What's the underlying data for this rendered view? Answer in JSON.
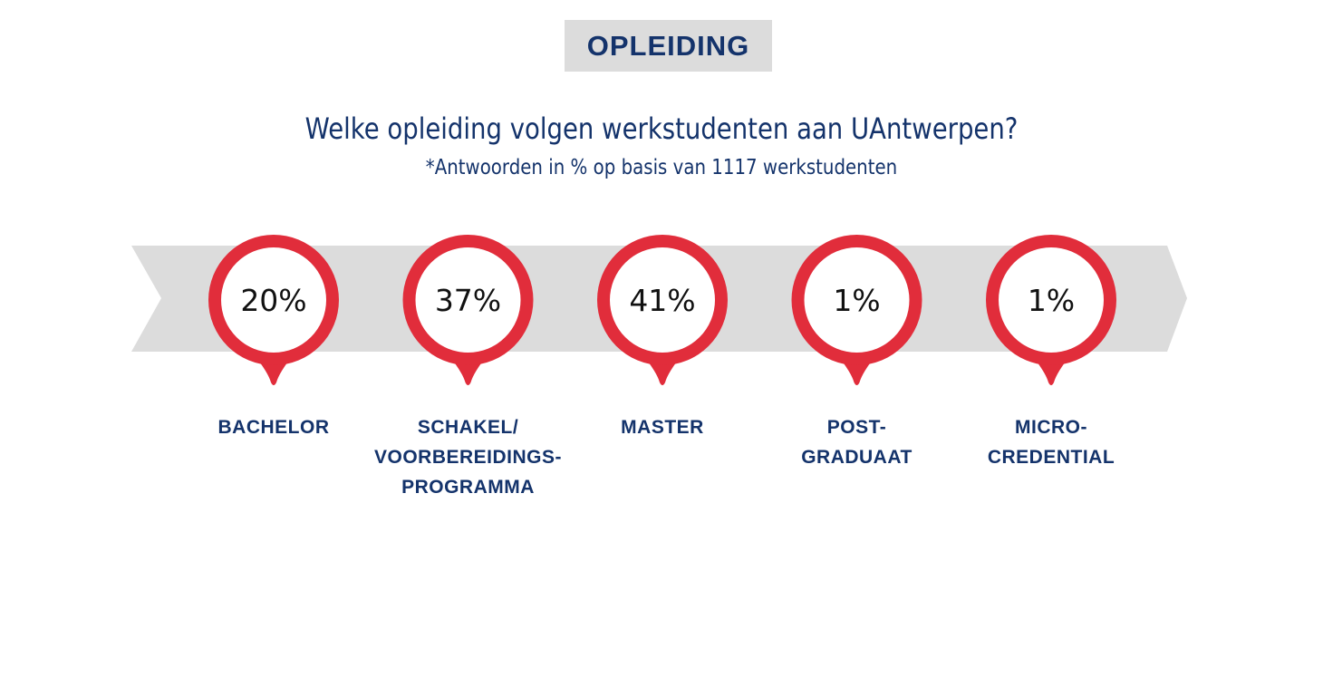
{
  "header": {
    "section_title": "OPLEIDING"
  },
  "chart_data": {
    "type": "bar",
    "title": "Welke opleiding volgen werkstudenten aan UAntwerpen?",
    "subtitle": "*Antwoorden in % op basis van 1117 werkstudenten",
    "categories": [
      "BACHELOR",
      "SCHAKEL/\nVOORBEREIDINGS-\nPROGRAMMA",
      "MASTER",
      "POST-\nGRADUAAT",
      "MICRO-\nCREDENTIAL"
    ],
    "values": [
      20,
      37,
      41,
      1,
      1
    ],
    "value_labels": [
      "20%",
      "37%",
      "41%",
      "1%",
      "1%"
    ],
    "unit": "%",
    "colors": {
      "accent": "#e12d3b",
      "text": "#14336b",
      "band": "#dcdcdc",
      "marker_fill": "#ffffff"
    }
  }
}
